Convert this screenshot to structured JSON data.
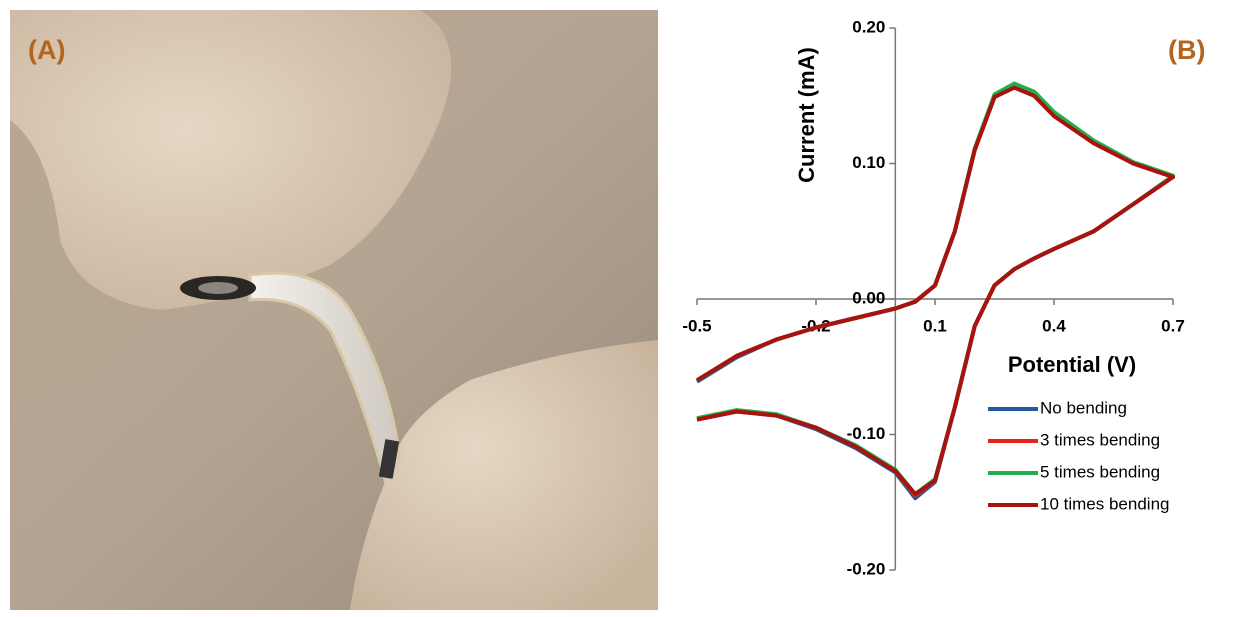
{
  "photo_label": "(A)",
  "chart_data": {
    "type": "line",
    "panel_label": "(B)",
    "x_label": "Potential (V)",
    "y_label": "Current (mA)",
    "xlim": [
      -0.5,
      0.7
    ],
    "ylim": [
      -0.2,
      0.2
    ],
    "xticks": [
      -0.5,
      -0.2,
      0.1,
      0.4,
      0.7
    ],
    "yticks": [
      {
        "value": 0.2,
        "label": "0.20"
      },
      {
        "value": 0.1,
        "label": "0.10"
      },
      {
        "value": 0,
        "label": "0.00"
      },
      {
        "value": -0.1,
        "label": "-0.10"
      },
      {
        "value": -0.2,
        "label": "-0.20"
      }
    ],
    "x": [
      -0.5,
      -0.4,
      -0.3,
      -0.2,
      -0.1,
      0,
      0.05,
      0.1,
      0.15,
      0.2,
      0.25,
      0.3,
      0.35,
      0.4,
      0.5,
      0.6,
      0.7,
      0.6,
      0.5,
      0.4,
      0.35,
      0.3,
      0.25,
      0.2,
      0.15,
      0.1,
      0.05,
      0,
      -0.1,
      -0.2,
      -0.3,
      -0.4,
      -0.5
    ],
    "series": [
      {
        "name": "No bending",
        "color": "#1f5c99",
        "values": [
          -0.061,
          -0.043,
          -0.03,
          -0.021,
          -0.014,
          -0.007,
          -0.002,
          0.01,
          0.05,
          0.11,
          0.15,
          0.159,
          0.152,
          0.137,
          0.116,
          0.1,
          0.09,
          0.07,
          0.05,
          0.037,
          0.03,
          0.022,
          0.01,
          -0.02,
          -0.08,
          -0.135,
          -0.147,
          -0.128,
          -0.11,
          -0.096,
          -0.086,
          -0.083,
          -0.089
        ]
      },
      {
        "name": "3 times bending",
        "color": "#e8231c",
        "values": [
          -0.06,
          -0.042,
          -0.03,
          -0.021,
          -0.014,
          -0.007,
          -0.002,
          0.01,
          0.05,
          0.11,
          0.149,
          0.157,
          0.151,
          0.136,
          0.115,
          0.1,
          0.09,
          0.07,
          0.05,
          0.037,
          0.03,
          0.022,
          0.01,
          -0.02,
          -0.08,
          -0.134,
          -0.145,
          -0.127,
          -0.109,
          -0.095,
          -0.086,
          -0.083,
          -0.089
        ]
      },
      {
        "name": "5 times bending",
        "color": "#22b04e",
        "values": [
          -0.06,
          -0.042,
          -0.03,
          -0.021,
          -0.014,
          -0.007,
          -0.002,
          0.01,
          0.05,
          0.111,
          0.151,
          0.159,
          0.153,
          0.138,
          0.117,
          0.101,
          0.091,
          0.07,
          0.05,
          0.037,
          0.03,
          0.022,
          0.01,
          -0.02,
          -0.08,
          -0.133,
          -0.144,
          -0.126,
          -0.108,
          -0.095,
          -0.085,
          -0.082,
          -0.088
        ]
      },
      {
        "name": "10 times bending",
        "color": "#a8120f",
        "values": [
          -0.06,
          -0.042,
          -0.03,
          -0.021,
          -0.014,
          -0.007,
          -0.002,
          0.01,
          0.05,
          0.11,
          0.149,
          0.156,
          0.15,
          0.135,
          0.115,
          0.1,
          0.09,
          0.07,
          0.05,
          0.037,
          0.03,
          0.022,
          0.01,
          -0.02,
          -0.08,
          -0.134,
          -0.144,
          -0.127,
          -0.109,
          -0.095,
          -0.086,
          -0.083,
          -0.089
        ]
      }
    ]
  }
}
